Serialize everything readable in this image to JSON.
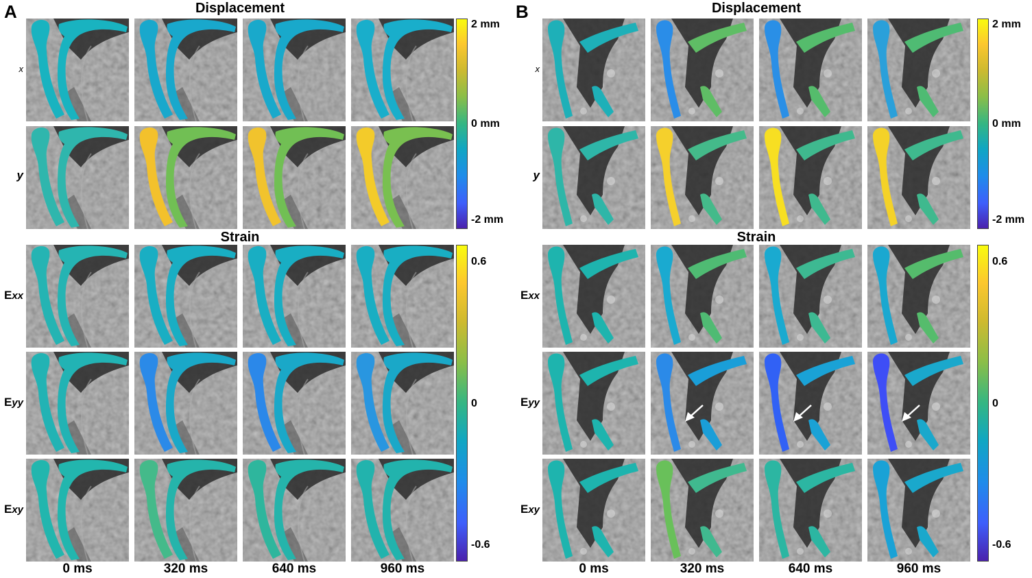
{
  "panels": [
    {
      "letter": "A",
      "displacement_title": "Displacement",
      "strain_title": "Strain",
      "displacement_rows": [
        {
          "label": "x",
          "fills": [
            "#19b3c0",
            "#19a8cc",
            "#19a9cb",
            "#19aecb"
          ],
          "fills_lower": [
            "#19b3c0",
            "#19a8cc",
            "#19a9cb",
            "#19aecb"
          ]
        },
        {
          "label": "y",
          "fills": [
            "#2fb6ad",
            "#f3c12c",
            "#f1c32d",
            "#f3cb2a"
          ],
          "fills_lower": [
            "#2fb6ad",
            "#71bf54",
            "#71bf54",
            "#79c050"
          ]
        }
      ],
      "strain_rows": [
        {
          "label_main": "E",
          "label_sub": "xx",
          "fills": [
            "#25b4b3",
            "#19aec3",
            "#19aec3",
            "#19aec3"
          ],
          "fills_lower": [
            "#25b4b3",
            "#19aec3",
            "#19aec3",
            "#19aec3"
          ]
        },
        {
          "label_main": "E",
          "label_sub": "yy",
          "fills": [
            "#22b3b4",
            "#2b8ae8",
            "#2b88e9",
            "#2996e0"
          ],
          "fills_lower": [
            "#22b3b4",
            "#1aa8c8",
            "#1aa8c8",
            "#1aa8c8"
          ]
        },
        {
          "label_main": "E",
          "label_sub": "xy",
          "fills": [
            "#22b6ae",
            "#44ba8a",
            "#2eb69d",
            "#22b3ad"
          ],
          "fills_lower": [
            "#22b6ae",
            "#25b4ab",
            "#25b4ab",
            "#22b3ad"
          ]
        }
      ],
      "times": [
        "0 ms",
        "320 ms",
        "640 ms",
        "960 ms"
      ],
      "arrows_on_eyy": false
    },
    {
      "letter": "B",
      "displacement_title": "Displacement",
      "strain_title": "Strain",
      "displacement_rows": [
        {
          "label": "x",
          "fills": [
            "#1eb0b8",
            "#2a8de8",
            "#2a8fe6",
            "#2aa0da"
          ],
          "fills_lower": [
            "#1eb0b8",
            "#5fbd65",
            "#55bc6c",
            "#4fbb73"
          ]
        },
        {
          "label": "y",
          "fills": [
            "#2eb6a8",
            "#f5d02c",
            "#f7df22",
            "#f4d228"
          ],
          "fills_lower": [
            "#2eb6a8",
            "#44ba8a",
            "#3fb98e",
            "#3fb98e"
          ]
        }
      ],
      "strain_rows": [
        {
          "label_main": "E",
          "label_sub": "xx",
          "fills": [
            "#1eb4ae",
            "#1aaad0",
            "#1aaad0",
            "#1aa8d0"
          ],
          "fills_lower": [
            "#1eb4ae",
            "#4fbb73",
            "#3db992",
            "#55bc6c"
          ]
        },
        {
          "label_main": "E",
          "label_sub": "yy",
          "fills": [
            "#1eb4ae",
            "#2b8ae8",
            "#3161f5",
            "#3e4ef6"
          ],
          "fills_lower": [
            "#1eb4ae",
            "#1a9ed8",
            "#1aa2d6",
            "#1aa8cc"
          ]
        },
        {
          "label_main": "E",
          "label_sub": "xy",
          "fills": [
            "#1eb4ae",
            "#69c05a",
            "#2cb6a2",
            "#1aa2d6"
          ],
          "fills_lower": [
            "#1eb4ae",
            "#40b98f",
            "#2cb6a2",
            "#1aa8cc"
          ]
        }
      ],
      "times": [
        "0 ms",
        "320 ms",
        "640 ms",
        "960 ms"
      ],
      "arrows_on_eyy": true
    }
  ],
  "colorbars": {
    "displacement": [
      "2 mm",
      "0 mm",
      "-2 mm"
    ],
    "strain": [
      "0.6",
      "0",
      "-0.6"
    ]
  },
  "colors": {
    "background_tissue": "#8a8a8a",
    "dark_cavity": "#2a2a2a",
    "arrow": "#ffffff"
  }
}
